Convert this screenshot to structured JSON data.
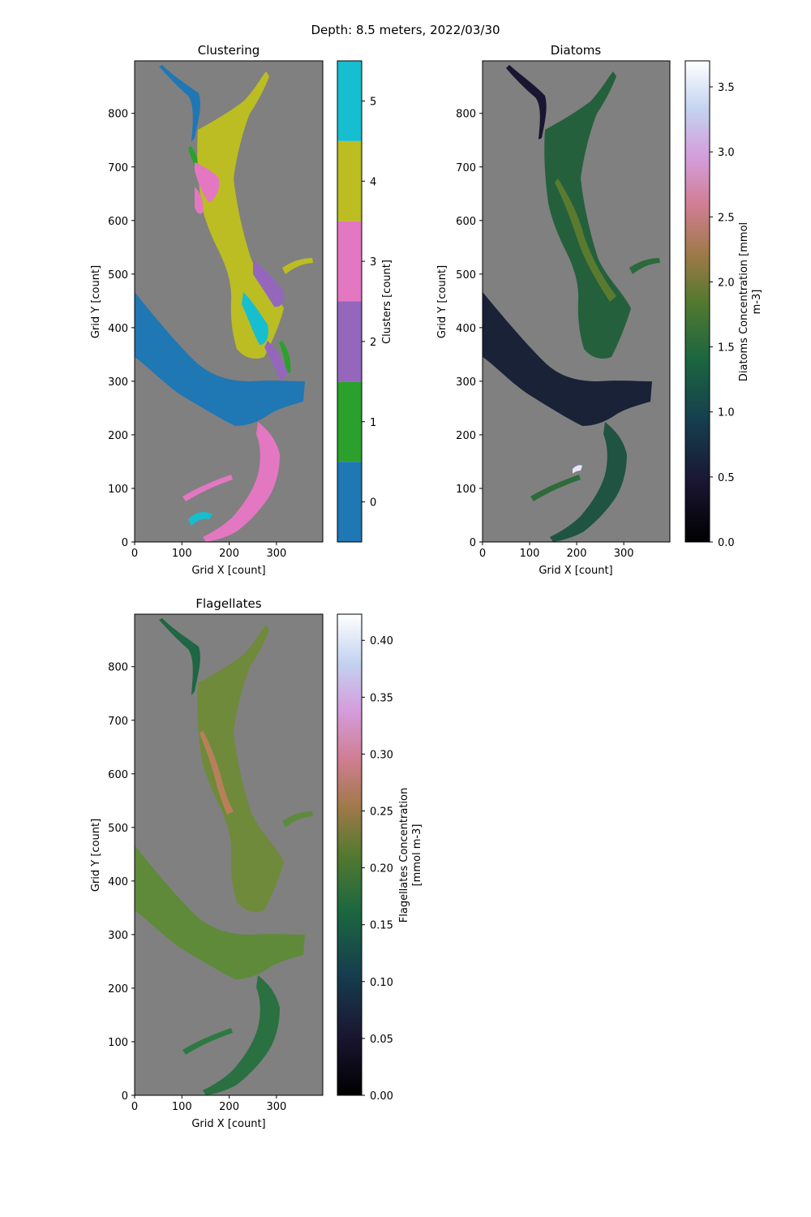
{
  "figure": {
    "suptitle": "Depth: 8.5 meters, 2022/03/30"
  },
  "chart_data": [
    {
      "type": "heatmap",
      "title": "Clustering",
      "xlabel": "Grid X [count]",
      "ylabel": "Grid Y [count]",
      "xlim": [
        0,
        398
      ],
      "ylim": [
        0,
        898
      ],
      "x_ticks": [
        0,
        100,
        200,
        300
      ],
      "y_ticks": [
        0,
        100,
        200,
        300,
        400,
        500,
        600,
        700,
        800
      ],
      "background_color": "#808080",
      "colorbar": {
        "label": "Clusters [count]",
        "type": "discrete",
        "categories": [
          "0",
          "1",
          "2",
          "3",
          "4",
          "5"
        ],
        "colors": [
          "#1f77b4",
          "#2ca02c",
          "#9467bd",
          "#e377c2",
          "#bcbd22",
          "#17becf"
        ]
      }
    },
    {
      "type": "heatmap",
      "title": "Diatoms",
      "xlabel": "Grid X [count]",
      "ylabel": "Grid Y [count]",
      "xlim": [
        0,
        398
      ],
      "ylim": [
        0,
        898
      ],
      "x_ticks": [
        0,
        100,
        200,
        300
      ],
      "y_ticks": [
        0,
        100,
        200,
        300,
        400,
        500,
        600,
        700,
        800
      ],
      "background_color": "#808080",
      "colorbar": {
        "label_lines": [
          "Diatoms Concentration [mmol",
          "m-3]"
        ],
        "type": "continuous",
        "colormap": "cubehelix",
        "range": [
          0,
          3.7
        ],
        "ticks": [
          "0.0",
          "0.5",
          "1.0",
          "1.5",
          "2.0",
          "2.5",
          "3.0",
          "3.5"
        ]
      }
    },
    {
      "type": "heatmap",
      "title": "Flagellates",
      "xlabel": "Grid X [count]",
      "ylabel": "Grid Y [count]",
      "xlim": [
        0,
        398
      ],
      "ylim": [
        0,
        898
      ],
      "x_ticks": [
        0,
        100,
        200,
        300
      ],
      "y_ticks": [
        0,
        100,
        200,
        300,
        400,
        500,
        600,
        700,
        800
      ],
      "background_color": "#808080",
      "colorbar": {
        "label_lines": [
          "Flagellates Concentration",
          "[mmol m-3]"
        ],
        "type": "continuous",
        "colormap": "cubehelix",
        "range": [
          0,
          0.423
        ],
        "ticks": [
          "0.00",
          "0.05",
          "0.10",
          "0.15",
          "0.20",
          "0.25",
          "0.30",
          "0.35",
          "0.40"
        ]
      }
    }
  ]
}
